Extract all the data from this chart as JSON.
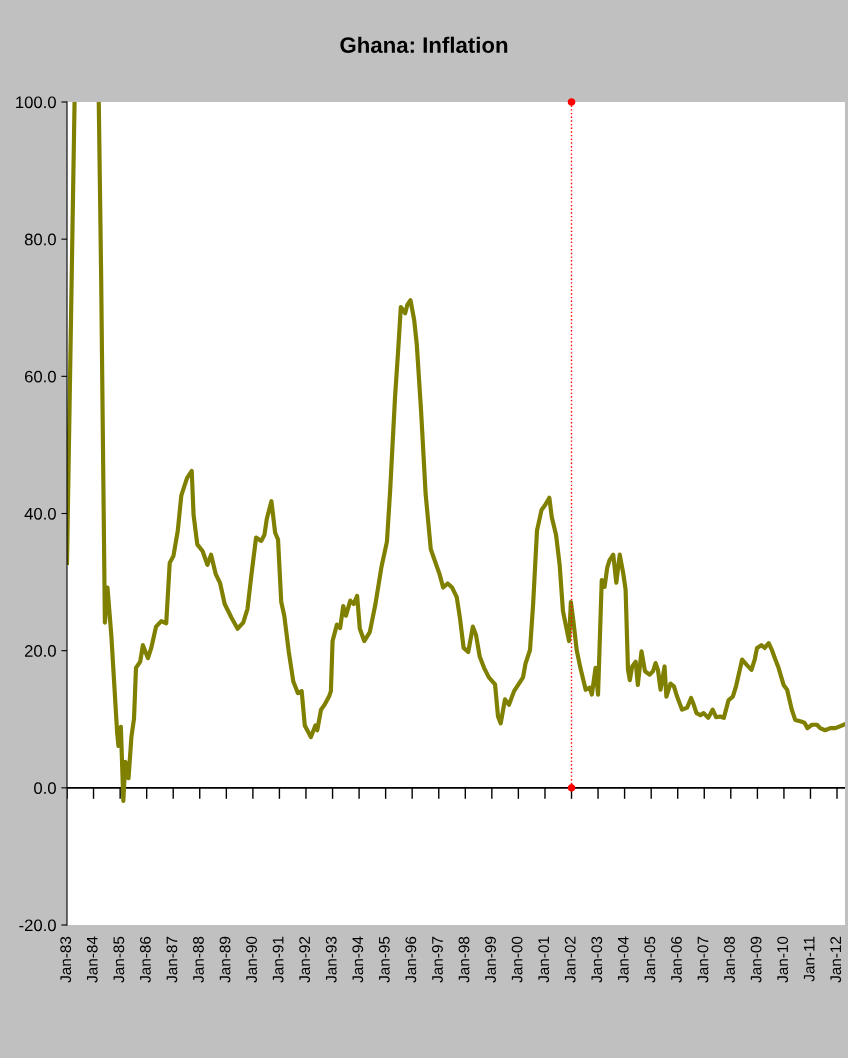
{
  "chart_data": {
    "type": "line",
    "title": "Ghana: Inflation",
    "x": [
      "1983-01-01",
      "1983-04-15",
      "1983-04-19",
      "1984-03-09",
      "1984-03-13",
      "1984-04-15",
      "1984-06-05",
      "1984-07-11",
      "1984-09-02",
      "1984-11-21",
      "1984-12-09",
      "1985-01-11",
      "1985-02-14",
      "1985-03-13",
      "1985-04-26",
      "1985-06-05",
      "1985-07-11",
      "1985-08-07",
      "1985-10-04",
      "1985-11-10",
      "1986-01-19",
      "1986-03-05",
      "1986-05-10",
      "1986-07-22",
      "1986-09-27",
      "1986-11-14",
      "1987-01-04",
      "1987-03-05",
      "1987-04-22",
      "1987-07-11",
      "1987-09-13",
      "1987-10-08",
      "1987-11-28",
      "1988-02-10",
      "1988-04-15",
      "1988-06-05",
      "1988-08-07",
      "1988-10-08",
      "1988-12-09",
      "1989-03-13",
      "1989-06-05",
      "1989-08-21",
      "1989-10-19",
      "1989-12-09",
      "1990-02-14",
      "1990-04-26",
      "1990-06-09",
      "1990-07-11",
      "1990-09-13",
      "1990-11-03",
      "1990-12-13",
      "1991-01-26",
      "1991-03-09",
      "1991-05-10",
      "1991-07-11",
      "1991-09-13",
      "1991-11-03",
      "1991-12-16",
      "1992-03-09",
      "1992-05-10",
      "1992-06-05",
      "1992-07-26",
      "1992-09-13",
      "1992-11-17",
      "1992-12-09",
      "1993-01-01",
      "1993-03-02",
      "1993-04-15",
      "1993-05-28",
      "1993-07-04",
      "1993-09-02",
      "1993-10-19",
      "1993-12-05",
      "1994-01-11",
      "1994-03-13",
      "1994-05-28",
      "1994-08-14",
      "1994-11-03",
      "1995-01-19",
      "1995-03-05",
      "1995-05-10",
      "1995-06-23",
      "1995-07-29",
      "1995-09-27",
      "1995-10-26",
      "1995-12-09",
      "1996-01-29",
      "1996-03-05",
      "1996-05-03",
      "1996-07-04",
      "1996-09-13",
      "1996-11-28",
      "1997-01-11",
      "1997-03-02",
      "1997-05-03",
      "1997-07-04",
      "1997-09-05",
      "1997-10-19",
      "1997-12-09",
      "1998-02-10",
      "1998-04-15",
      "1998-05-28",
      "1998-07-19",
      "1998-09-16",
      "1998-11-21",
      "1999-02-14",
      "1999-03-27",
      "1999-05-03",
      "1999-07-01",
      "1999-08-25",
      "1999-11-03",
      "2000-03-05",
      "2000-04-08",
      "2000-06-09",
      "2000-07-22",
      "2000-09-13",
      "2000-11-14",
      "2001-01-01",
      "2001-03-02",
      "2001-04-04",
      "2001-06-02",
      "2001-07-22",
      "2001-09-05",
      "2001-11-28",
      "2001-12-23",
      "2002-01-29",
      "2002-03-13",
      "2002-05-03",
      "2002-07-15",
      "2002-09-09",
      "2002-10-08",
      "2002-11-28",
      "2003-01-01",
      "2003-02-21",
      "2003-04-01",
      "2003-05-07",
      "2003-06-09",
      "2003-07-29",
      "2003-09-09",
      "2003-10-26",
      "2003-12-13",
      "2004-01-15",
      "2004-02-17",
      "2004-03-13",
      "2004-04-15",
      "2004-06-02",
      "2004-07-01",
      "2004-08-21",
      "2004-10-08",
      "2004-12-09",
      "2005-01-26",
      "2005-03-02",
      "2005-04-04",
      "2005-05-10",
      "2005-07-04",
      "2005-07-29",
      "2005-09-23",
      "2005-11-10",
      "2005-12-23",
      "2006-03-02",
      "2006-05-10",
      "2006-07-04",
      "2006-08-10",
      "2006-09-16",
      "2006-11-10",
      "2006-12-23",
      "2007-02-25",
      "2007-04-26",
      "2007-06-13",
      "2007-08-10",
      "2007-09-27",
      "2007-12-02",
      "2008-01-29",
      "2008-03-13",
      "2008-06-05",
      "2008-08-10",
      "2008-10-11",
      "2008-11-25",
      "2008-12-27",
      "2009-02-25",
      "2009-04-11",
      "2009-06-05",
      "2009-07-19",
      "2009-09-05",
      "2009-10-19",
      "2009-12-27",
      "2010-02-14",
      "2010-04-19",
      "2010-06-05",
      "2010-08-14",
      "2010-10-11",
      "2010-11-21",
      "2011-01-22",
      "2011-04-01",
      "2011-05-14",
      "2011-07-22",
      "2011-10-01",
      "2011-12-09",
      "2012-01-22",
      "2012-04-01"
    ],
    "series": [
      {
        "color": "#808000",
        "values": [
          32.8,
          100,
          null,
          null,
          100,
          74.3,
          24.1,
          29.2,
          22.2,
          8.0,
          6.1,
          8.9,
          -1.9,
          3.8,
          1.4,
          7.4,
          10.1,
          17.5,
          18.4,
          20.8,
          18.9,
          20.4,
          23.5,
          24.3,
          24.0,
          32.8,
          33.8,
          37.5,
          42.6,
          45.2,
          46.2,
          39.8,
          35.5,
          34.5,
          32.5,
          34.0,
          31.2,
          29.8,
          26.8,
          24.8,
          23.2,
          24.1,
          26.1,
          30.8,
          36.5,
          36.0,
          36.9,
          39.2,
          41.8,
          37.2,
          36.2,
          27.1,
          25.1,
          19.8,
          15.5,
          13.8,
          14.1,
          9.1,
          7.4,
          9.1,
          8.4,
          11.4,
          12.1,
          13.4,
          14.1,
          21.4,
          23.8,
          23.3,
          26.5,
          25.1,
          27.3,
          26.8,
          28.0,
          23.2,
          21.4,
          22.7,
          26.8,
          32.1,
          35.9,
          43.5,
          56.9,
          63.9,
          70.1,
          69.2,
          70.4,
          71.1,
          68.2,
          64.6,
          54.9,
          42.9,
          34.8,
          32.5,
          31.2,
          29.2,
          29.8,
          29.2,
          27.8,
          24.8,
          20.4,
          19.8,
          23.5,
          22.3,
          19.1,
          17.5,
          16.1,
          15.1,
          10.4,
          9.4,
          12.9,
          12.1,
          14.1,
          16.1,
          18.1,
          20.1,
          26.8,
          37.5,
          40.5,
          41.2,
          42.3,
          39.5,
          36.9,
          32.5,
          25.8,
          21.4,
          27.1,
          24.1,
          20.1,
          17.5,
          14.3,
          14.6,
          13.6,
          17.5,
          13.6,
          30.3,
          29.3,
          32.1,
          33.2,
          34.0,
          29.9,
          34.0,
          31.3,
          28.9,
          17.2,
          15.7,
          17.7,
          18.4,
          15.0,
          19.9,
          17.0,
          16.5,
          17.0,
          18.2,
          17.2,
          14.3,
          17.7,
          13.3,
          15.2,
          14.8,
          13.3,
          11.4,
          11.7,
          13.1,
          12.1,
          10.9,
          10.6,
          10.9,
          10.2,
          11.4,
          10.3,
          10.4,
          10.2,
          12.8,
          13.3,
          14.8,
          18.7,
          17.9,
          17.2,
          18.7,
          20.4,
          20.8,
          20.4,
          21.1,
          20.1,
          18.7,
          17.5,
          15.0,
          14.3,
          11.4,
          9.9,
          9.7,
          9.5,
          8.7,
          9.2,
          9.2,
          8.7,
          8.4,
          8.7,
          8.7,
          8.9,
          9.2
        ]
      }
    ],
    "xlim": [
      "1983-01-01",
      "2012-04-20"
    ],
    "xticks": [
      {
        "value": "1983-01-01",
        "label": "Jan-83"
      },
      {
        "value": "1984-01-01",
        "label": "Jan-84"
      },
      {
        "value": "1985-01-01",
        "label": "Jan-85"
      },
      {
        "value": "1986-01-01",
        "label": "Jan-86"
      },
      {
        "value": "1987-01-01",
        "label": "Jan-87"
      },
      {
        "value": "1988-01-01",
        "label": "Jan-88"
      },
      {
        "value": "1989-01-01",
        "label": "Jan-89"
      },
      {
        "value": "1990-01-01",
        "label": "Jan-90"
      },
      {
        "value": "1991-01-01",
        "label": "Jan-91"
      },
      {
        "value": "1992-01-01",
        "label": "Jan-92"
      },
      {
        "value": "1993-01-01",
        "label": "Jan-93"
      },
      {
        "value": "1994-01-01",
        "label": "Jan-94"
      },
      {
        "value": "1995-01-01",
        "label": "Jan-95"
      },
      {
        "value": "1996-01-01",
        "label": "Jan-96"
      },
      {
        "value": "1997-01-01",
        "label": "Jan-97"
      },
      {
        "value": "1998-01-01",
        "label": "Jan-98"
      },
      {
        "value": "1999-01-01",
        "label": "Jan-99"
      },
      {
        "value": "2000-01-01",
        "label": "Jan-00"
      },
      {
        "value": "2001-01-01",
        "label": "Jan-01"
      },
      {
        "value": "2002-01-01",
        "label": "Jan-02"
      },
      {
        "value": "2003-01-01",
        "label": "Jan-03"
      },
      {
        "value": "2004-01-01",
        "label": "Jan-04"
      },
      {
        "value": "2005-01-01",
        "label": "Jan-05"
      },
      {
        "value": "2006-01-01",
        "label": "Jan-06"
      },
      {
        "value": "2007-01-01",
        "label": "Jan-07"
      },
      {
        "value": "2008-01-01",
        "label": "Jan-08"
      },
      {
        "value": "2009-01-01",
        "label": "Jan-09"
      },
      {
        "value": "2010-01-01",
        "label": "Jan-10"
      },
      {
        "value": "2011-01-01",
        "label": "Jan-11"
      },
      {
        "value": "2012-01-01",
        "label": "Jan-12"
      }
    ],
    "ylim": [
      -20,
      100
    ],
    "yticks": [
      {
        "value": -20,
        "label": "-20.0"
      },
      {
        "value": 0,
        "label": "0.0"
      },
      {
        "value": 20,
        "label": "20.0"
      },
      {
        "value": 40,
        "label": "40.0"
      },
      {
        "value": 60,
        "label": "60.0"
      },
      {
        "value": 80,
        "label": "80.0"
      },
      {
        "value": 100,
        "label": "100.0"
      }
    ],
    "ref_lines": [
      {
        "axis": "y",
        "value": 0,
        "color": "#000000",
        "line_style": "solid"
      },
      {
        "axis": "x",
        "value": "2002-01-01",
        "color": "#ff0000",
        "line_style": "dotted"
      }
    ],
    "grid": false,
    "legend": false,
    "marker": "none",
    "line_style": "solid"
  }
}
